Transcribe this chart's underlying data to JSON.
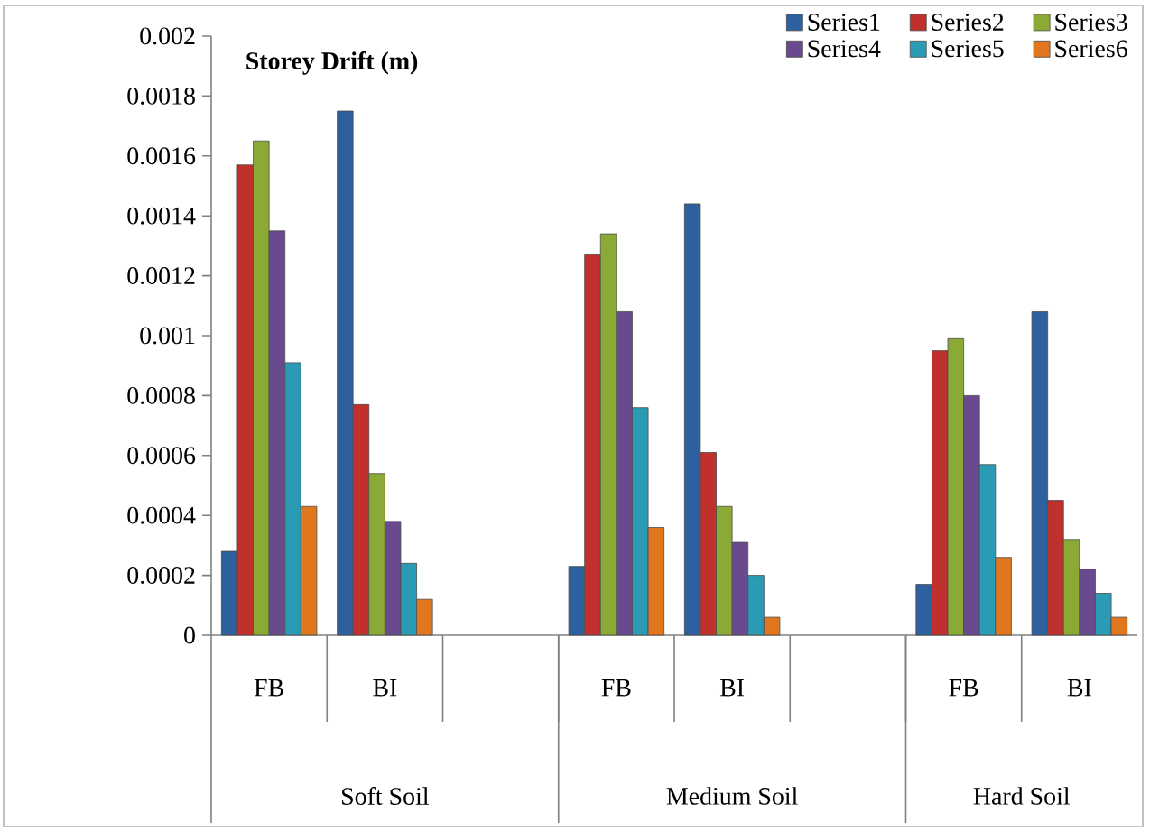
{
  "chart_data": {
    "type": "bar",
    "title": "Storey Drift (m)",
    "categories": [
      "FB",
      "BI",
      null,
      "FB",
      "BI",
      null,
      "FB",
      "BI"
    ],
    "annotations": [
      "Soft Soil",
      "Medium Soil",
      "Hard Soil"
    ],
    "series": [
      {
        "name": "Series1",
        "color": "#2e5f9e",
        "values": [
          0.00028,
          0.00175,
          null,
          0.00023,
          0.00144,
          null,
          0.00017,
          0.00108
        ]
      },
      {
        "name": "Series2",
        "color": "#c0302c",
        "values": [
          0.00157,
          0.00077,
          null,
          0.00127,
          0.00061,
          null,
          0.00095,
          0.00045
        ]
      },
      {
        "name": "Series3",
        "color": "#8aaa35",
        "values": [
          0.00165,
          0.00054,
          null,
          0.00134,
          0.00043,
          null,
          0.00099,
          0.00032
        ]
      },
      {
        "name": "Series4",
        "color": "#6a4a8e",
        "values": [
          0.00135,
          0.00038,
          null,
          0.00108,
          0.00031,
          null,
          0.0008,
          0.00022
        ]
      },
      {
        "name": "Series5",
        "color": "#2b9ab5",
        "values": [
          0.00091,
          0.00024,
          null,
          0.00076,
          0.0002,
          null,
          0.00057,
          0.00014
        ]
      },
      {
        "name": "Series6",
        "color": "#e0771f",
        "values": [
          0.00043,
          0.00012,
          null,
          0.00036,
          6e-05,
          null,
          0.00026,
          6e-05
        ]
      }
    ],
    "ylim": [
      0,
      0.002
    ],
    "yticks": [
      0,
      0.0002,
      0.0004,
      0.0006,
      0.0008,
      0.001,
      0.0012,
      0.0014,
      0.0016,
      0.0018,
      0.002
    ],
    "grid": false,
    "legend": "top right"
  }
}
